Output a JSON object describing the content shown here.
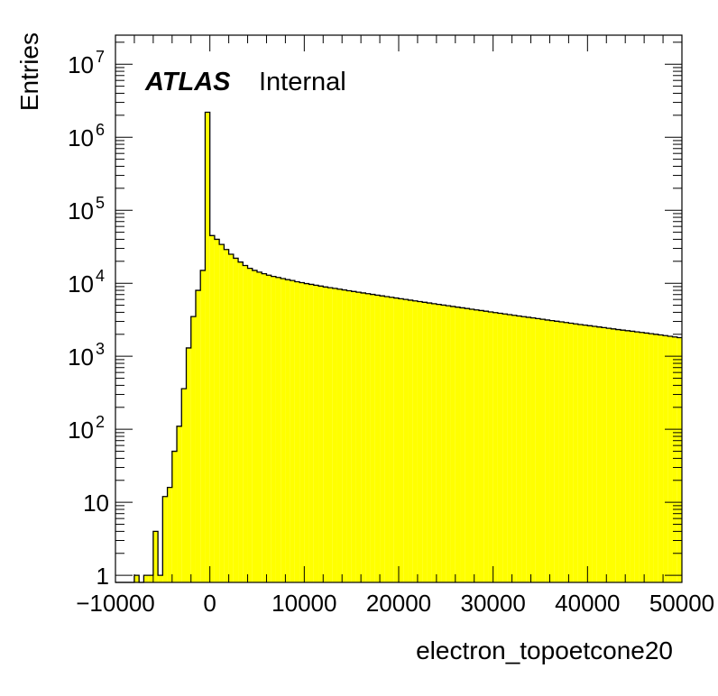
{
  "chart_data": {
    "type": "bar",
    "histogram": true,
    "xlabel": "electron_topoetcone20",
    "ylabel": "Entries",
    "ylog": true,
    "xlim": [
      -10000,
      50000
    ],
    "ylim": [
      0.8,
      25000000
    ],
    "fill_color": "#ffff00",
    "edge_color": "#000000",
    "label": {
      "experiment": "ATLAS",
      "status": "Internal"
    },
    "x_ticks": [
      {
        "value": -10000,
        "label": "−10000"
      },
      {
        "value": 0,
        "label": "0"
      },
      {
        "value": 10000,
        "label": "10000"
      },
      {
        "value": 20000,
        "label": "20000"
      },
      {
        "value": 30000,
        "label": "30000"
      },
      {
        "value": 40000,
        "label": "40000"
      },
      {
        "value": 50000,
        "label": "50000"
      }
    ],
    "y_ticks": [
      {
        "value": 1,
        "base": "1",
        "exp": ""
      },
      {
        "value": 10,
        "base": "10",
        "exp": ""
      },
      {
        "value": 100,
        "base": "10",
        "exp": "2"
      },
      {
        "value": 1000,
        "base": "10",
        "exp": "3"
      },
      {
        "value": 10000,
        "base": "10",
        "exp": "4"
      },
      {
        "value": 100000,
        "base": "10",
        "exp": "5"
      },
      {
        "value": 1000000,
        "base": "10",
        "exp": "6"
      },
      {
        "value": 10000000,
        "base": "10",
        "exp": "7"
      }
    ],
    "bin_width": 500,
    "bin_edges_start": -10000,
    "values": [
      0,
      0,
      0,
      0,
      1,
      0,
      1,
      1,
      4,
      1,
      12,
      16,
      50,
      110,
      360,
      1300,
      3500,
      8000,
      15000,
      2200000,
      45000,
      40000,
      34000,
      29000,
      25000,
      22000,
      19500,
      17500,
      16000,
      15000,
      14200,
      13500,
      12900,
      12400,
      12000,
      11600,
      11200,
      10900,
      10500,
      10200,
      9900,
      9650,
      9400,
      9150,
      8900,
      8700,
      8500,
      8300,
      8100,
      7900,
      7720,
      7540,
      7370,
      7200,
      7040,
      6880,
      6720,
      6570,
      6420,
      6280,
      6140,
      6000,
      5870,
      5740,
      5610,
      5490,
      5370,
      5250,
      5140,
      5030,
      4920,
      4810,
      4710,
      4610,
      4510,
      4410,
      4320,
      4230,
      4140,
      4050,
      3960,
      3880,
      3800,
      3720,
      3640,
      3560,
      3490,
      3420,
      3350,
      3280,
      3210,
      3140,
      3080,
      3020,
      2960,
      2900,
      2840,
      2780,
      2720,
      2670,
      2620,
      2570,
      2520,
      2470,
      2420,
      2370,
      2320,
      2280,
      2240,
      2200,
      2160,
      2120,
      2080,
      2040,
      2000,
      1960,
      1920,
      1880,
      1840,
      1800
    ]
  }
}
